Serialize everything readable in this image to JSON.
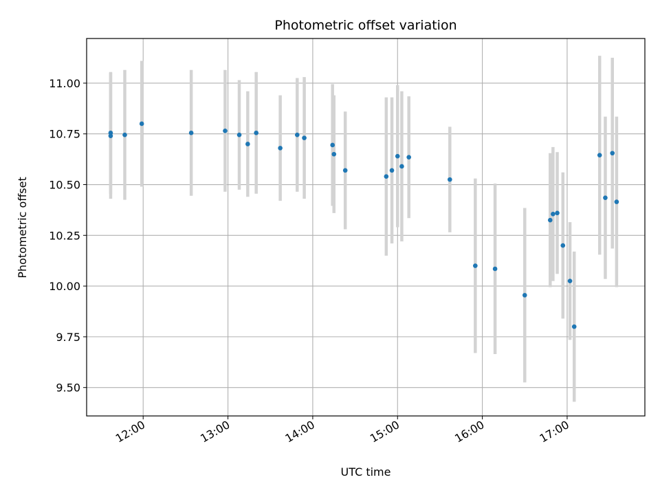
{
  "chart_data": {
    "type": "scatter",
    "title": "Photometric offset variation",
    "xlabel": "UTC time",
    "ylabel": "Photometric offset",
    "xlim": [
      "11:20",
      "17:55"
    ],
    "ylim": [
      9.36,
      11.22
    ],
    "xticks": [
      "12:00",
      "13:00",
      "14:00",
      "15:00",
      "16:00",
      "17:00"
    ],
    "yticks": [
      "9.50",
      "9.75",
      "10.00",
      "10.25",
      "10.50",
      "10.75",
      "11.00"
    ],
    "grid": true,
    "colors": {
      "point": "#1f77b4",
      "errorbar": "#d3d3d3",
      "grid": "#b0b0b0"
    },
    "points": [
      {
        "x": "11:37",
        "y": 10.755,
        "err": 0.3
      },
      {
        "x": "11:37",
        "y": 10.74,
        "err": 0.31
      },
      {
        "x": "11:47",
        "y": 10.745,
        "err": 0.32
      },
      {
        "x": "11:59",
        "y": 10.8,
        "err": 0.31
      },
      {
        "x": "12:34",
        "y": 10.755,
        "err": 0.31
      },
      {
        "x": "12:58",
        "y": 10.765,
        "err": 0.3
      },
      {
        "x": "13:08",
        "y": 10.745,
        "err": 0.27
      },
      {
        "x": "13:14",
        "y": 10.7,
        "err": 0.26
      },
      {
        "x": "13:20",
        "y": 10.755,
        "err": 0.3
      },
      {
        "x": "13:37",
        "y": 10.68,
        "err": 0.26
      },
      {
        "x": "13:49",
        "y": 10.745,
        "err": 0.28
      },
      {
        "x": "13:54",
        "y": 10.73,
        "err": 0.3
      },
      {
        "x": "14:14",
        "y": 10.695,
        "err": 0.3
      },
      {
        "x": "14:15",
        "y": 10.65,
        "err": 0.29
      },
      {
        "x": "14:23",
        "y": 10.57,
        "err": 0.29
      },
      {
        "x": "14:52",
        "y": 10.54,
        "err": 0.39
      },
      {
        "x": "14:56",
        "y": 10.57,
        "err": 0.36
      },
      {
        "x": "15:00",
        "y": 10.64,
        "err": 0.35
      },
      {
        "x": "15:03",
        "y": 10.59,
        "err": 0.37
      },
      {
        "x": "15:08",
        "y": 10.635,
        "err": 0.3
      },
      {
        "x": "15:37",
        "y": 10.525,
        "err": 0.26
      },
      {
        "x": "15:55",
        "y": 10.1,
        "err": 0.43
      },
      {
        "x": "16:09",
        "y": 10.085,
        "err": 0.42
      },
      {
        "x": "16:30",
        "y": 9.955,
        "err": 0.43
      },
      {
        "x": "16:48",
        "y": 10.325,
        "err": 0.33
      },
      {
        "x": "16:50",
        "y": 10.355,
        "err": 0.33
      },
      {
        "x": "16:53",
        "y": 10.36,
        "err": 0.3
      },
      {
        "x": "16:57",
        "y": 10.2,
        "err": 0.36
      },
      {
        "x": "17:02",
        "y": 10.025,
        "err": 0.29
      },
      {
        "x": "17:05",
        "y": 9.8,
        "err": 0.37
      },
      {
        "x": "17:23",
        "y": 10.645,
        "err": 0.49
      },
      {
        "x": "17:27",
        "y": 10.435,
        "err": 0.4
      },
      {
        "x": "17:32",
        "y": 10.655,
        "err": 0.47
      },
      {
        "x": "17:35",
        "y": 10.415,
        "err": 0.42
      }
    ]
  }
}
